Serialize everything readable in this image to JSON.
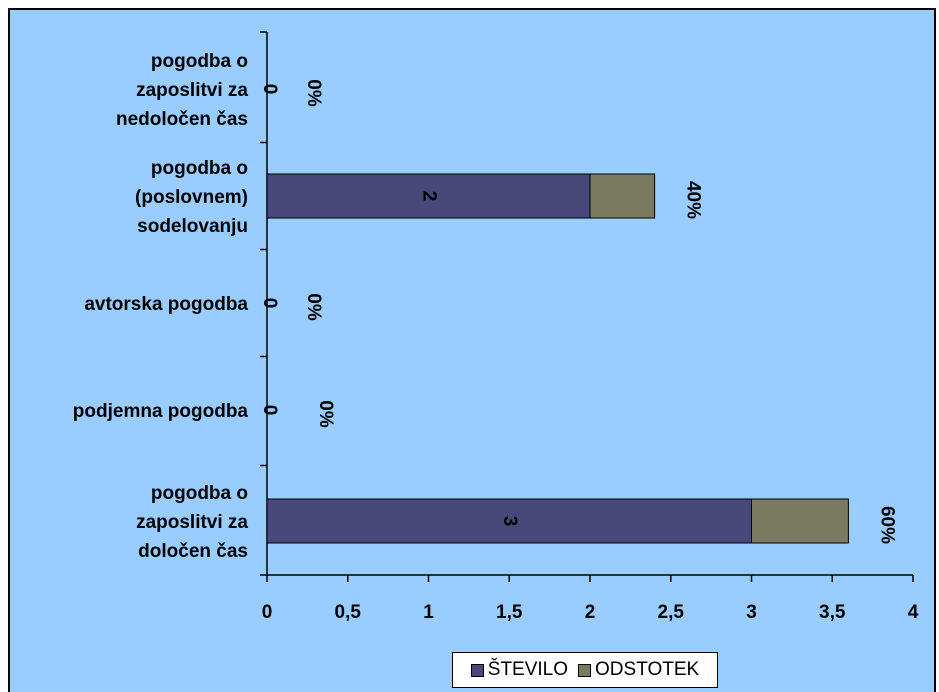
{
  "chart_data": {
    "type": "bar",
    "orientation": "horizontal",
    "stacked": true,
    "categories": [
      [
        "pogodba o",
        "zaposlitvi za",
        "nedoločen čas"
      ],
      [
        "pogodba o",
        "(poslovnem)",
        "sodelovanju"
      ],
      [
        "avtorska pogodba"
      ],
      [
        "podjemna pogodba"
      ],
      [
        "pogodba o",
        "zaposlitvi za",
        "določen čas"
      ]
    ],
    "series": [
      {
        "name": "ŠTEVILO",
        "color": "#48487a",
        "values": [
          0,
          2,
          0,
          0,
          3
        ],
        "labels": [
          "0",
          "2",
          "0",
          "0",
          "3"
        ]
      },
      {
        "name": "ODSTOTEK",
        "color": "#7a7a60",
        "values": [
          0,
          0.4,
          0,
          0,
          0.6
        ],
        "labels": [
          "0%",
          "40%",
          "0%",
          "0%",
          "60%"
        ]
      }
    ],
    "xlim": [
      0,
      4
    ],
    "xticks": [
      "0",
      "0,5",
      "1",
      "1,5",
      "2",
      "2,5",
      "3",
      "3,5",
      "4"
    ],
    "xtick_values": [
      0,
      0.5,
      1,
      1.5,
      2,
      2.5,
      3,
      3.5,
      4
    ],
    "legend_position": "bottom",
    "background": "#99ccff"
  }
}
